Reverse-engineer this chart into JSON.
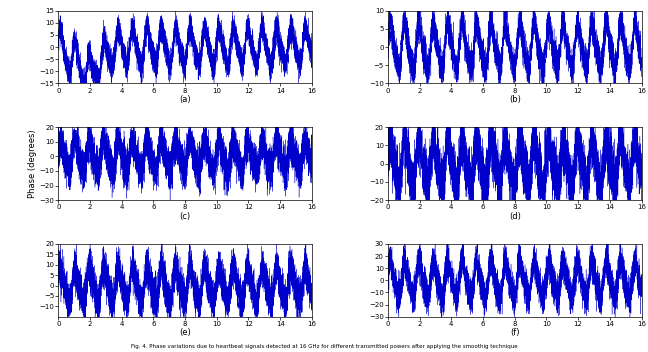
{
  "n_points": 8000,
  "x_max": 16,
  "subplots": [
    {
      "label": "(a)",
      "ylim": [
        -15,
        15
      ],
      "yticks": [
        -15,
        -10,
        -5,
        0,
        5,
        10,
        15
      ],
      "signal_amp": 7,
      "noise_amp": 2.5,
      "heartbeat_freq": 1.1,
      "seed": 10
    },
    {
      "label": "(b)",
      "ylim": [
        -10,
        10
      ],
      "yticks": [
        -10,
        -5,
        0,
        5,
        10
      ],
      "signal_amp": 6,
      "noise_amp": 2.0,
      "heartbeat_freq": 1.1,
      "seed": 20
    },
    {
      "label": "(c)",
      "ylim": [
        -30,
        20
      ],
      "yticks": [
        -30,
        -20,
        -10,
        0,
        10,
        20
      ],
      "signal_amp": 10,
      "noise_amp": 3.5,
      "heartbeat_freq": 1.1,
      "seed": 30
    },
    {
      "label": "(d)",
      "ylim": [
        -20,
        20
      ],
      "yticks": [
        -20,
        -10,
        0,
        10,
        20
      ],
      "signal_amp": 12,
      "noise_amp": 4.0,
      "heartbeat_freq": 1.1,
      "seed": 40
    },
    {
      "label": "(e)",
      "ylim": [
        -15,
        20
      ],
      "yticks": [
        -10,
        -5,
        0,
        5,
        10,
        15,
        20
      ],
      "signal_amp": 8,
      "noise_amp": 4.0,
      "heartbeat_freq": 1.1,
      "seed": 50
    },
    {
      "label": "(f)",
      "ylim": [
        -30,
        30
      ],
      "yticks": [
        -30,
        -20,
        -10,
        0,
        10,
        20,
        30
      ],
      "signal_amp": 14,
      "noise_amp": 6.0,
      "heartbeat_freq": 1.1,
      "seed": 60
    }
  ],
  "line_color": "#0000CC",
  "bg_color": "#ffffff",
  "ylabel": "Phase (degrees)",
  "xticks": [
    0,
    2,
    4,
    6,
    8,
    10,
    12,
    14,
    16
  ],
  "fig_title": "Fig. 4. Phase variations due to heartbeat signals detected at 16 GHz for different transmitted powers after applying the smoothig technique"
}
